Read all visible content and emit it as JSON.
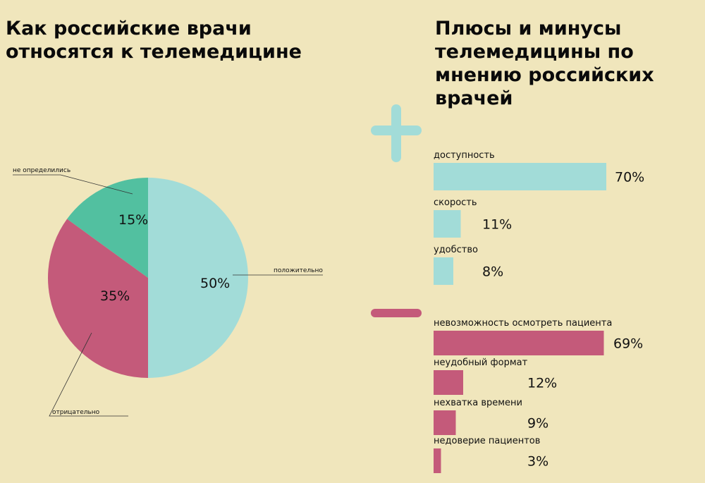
{
  "chart_data": [
    {
      "type": "pie",
      "title": "Как российские врачи относятся к телемедицине",
      "slices": [
        {
          "label": "положительно",
          "value": 50,
          "value_label": "50%",
          "color": "#a2dcd8"
        },
        {
          "label": "отрицательно",
          "value": 35,
          "value_label": "35%",
          "color": "#c45a7a"
        },
        {
          "label": "не определились",
          "value": 15,
          "value_label": "15%",
          "color": "#52c0a0"
        }
      ]
    },
    {
      "type": "bar",
      "orientation": "horizontal",
      "title": "Плюсы и минусы телемедицины по мнению российских врачей",
      "xlim": [
        0,
        70
      ],
      "groups": [
        {
          "name": "плюсы",
          "icon": "plus-icon",
          "color": "#a2dcd8",
          "categories": [
            "доступность",
            "скорость",
            "удобство"
          ],
          "values": [
            70,
            11,
            8
          ],
          "value_labels": [
            "70%",
            "11%",
            "8%"
          ]
        },
        {
          "name": "минусы",
          "icon": "minus-icon",
          "color": "#c45a7a",
          "categories": [
            "невозможность осмотреть пациента",
            "неудобный формат",
            "нехватка времени",
            "недоверие пациентов"
          ],
          "values": [
            69,
            12,
            9,
            3
          ],
          "value_labels": [
            "69%",
            "12%",
            "9%",
            "3%"
          ]
        }
      ]
    }
  ]
}
